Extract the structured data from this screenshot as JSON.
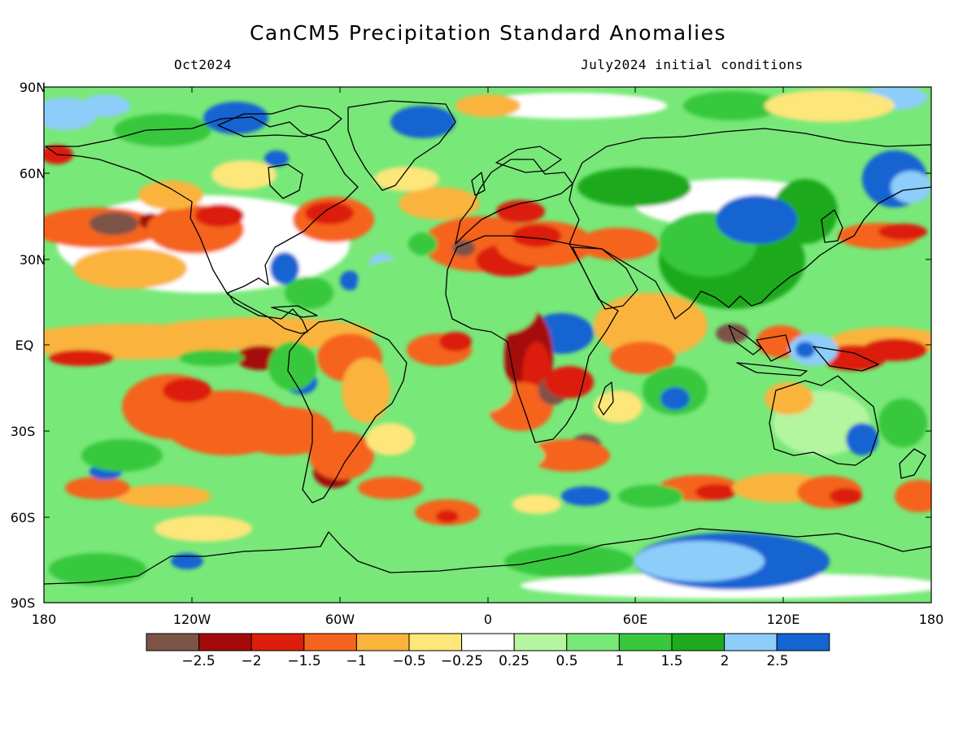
{
  "title": "CanCM5 Precipitation Standard Anomalies",
  "subtitle_left": "Oct2024",
  "subtitle_right": "July2024 initial conditions",
  "lat_labels": [
    "90N",
    "60N",
    "30N",
    "EQ",
    "30S",
    "60S",
    "90S"
  ],
  "lon_labels": [
    "180",
    "120W",
    "60W",
    "0",
    "60E",
    "120E",
    "180"
  ],
  "colorbar": {
    "colors": [
      "#7b5347",
      "#a50a0a",
      "#dc1e0a",
      "#f5641e",
      "#fab43c",
      "#fde67a",
      "#ffffff",
      "#b4f5a0",
      "#78e878",
      "#37c83c",
      "#1eaa1e",
      "#8ccdfa",
      "#1464d2"
    ],
    "labels": [
      "−2.5",
      "−2",
      "−1.5",
      "−1",
      "−0.5",
      "−0.25",
      "0.25",
      "0.5",
      "1",
      "1.5",
      "2",
      "2.5"
    ]
  }
}
